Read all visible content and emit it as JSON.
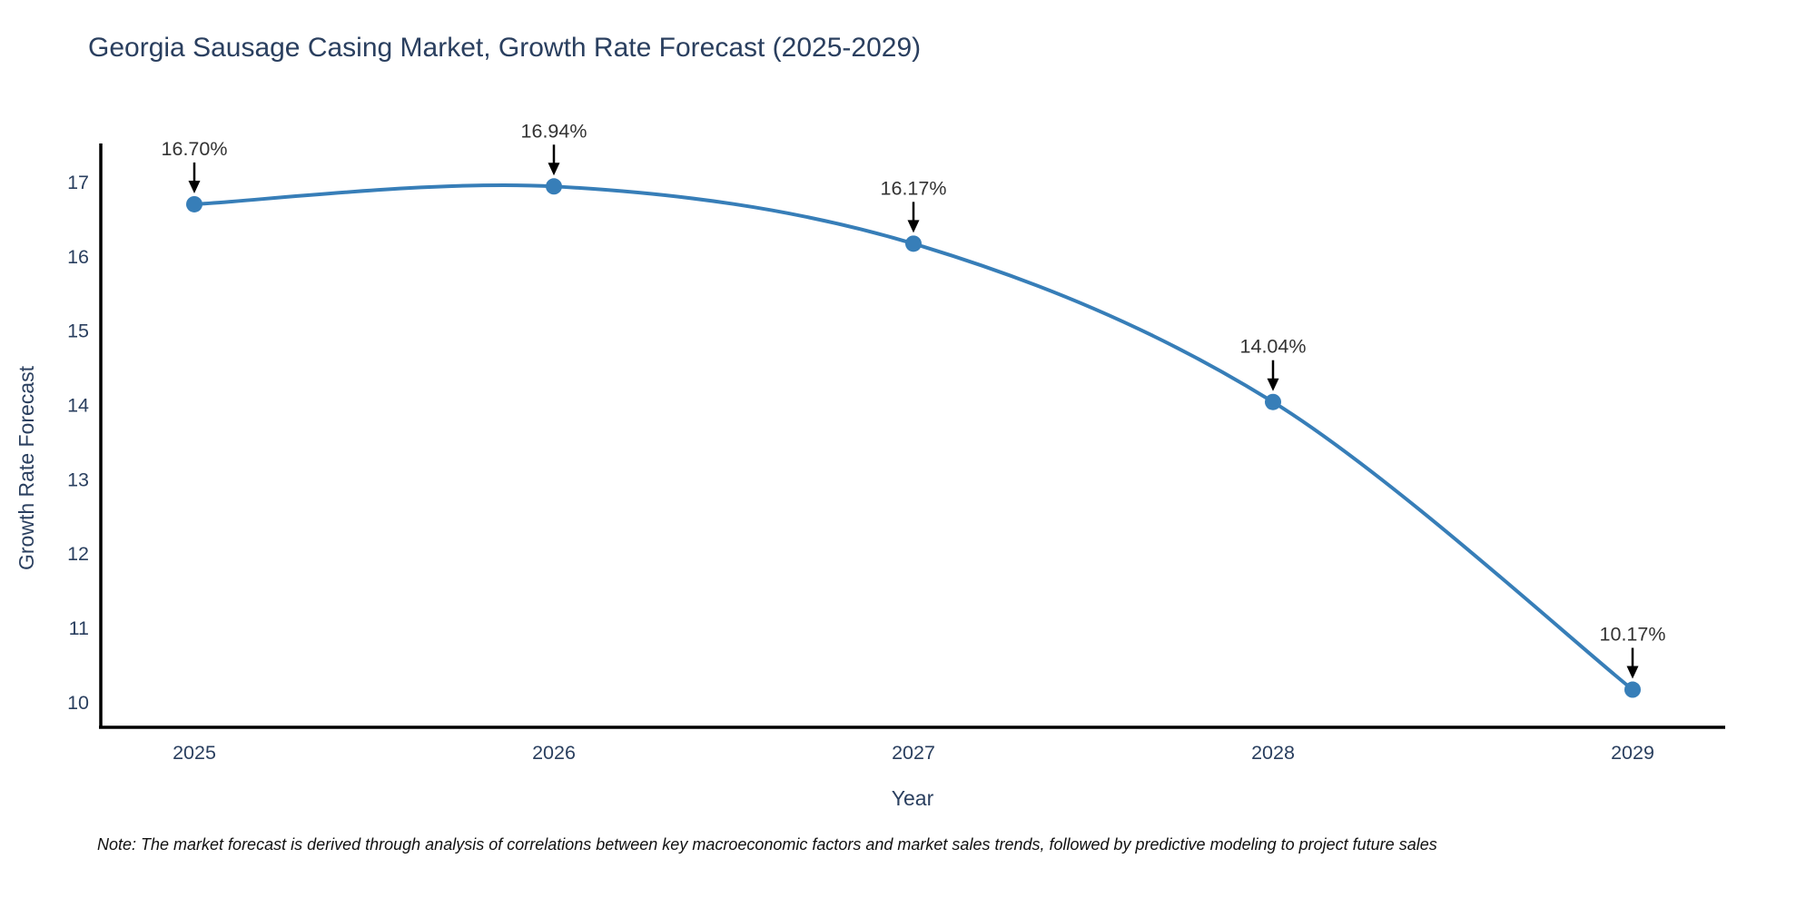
{
  "title": "Georgia Sausage Casing Market, Growth Rate Forecast (2025-2029)",
  "note": "Note: The market forecast is derived through analysis of correlations between key macroeconomic factors and market sales trends, followed by predictive modeling to project future sales",
  "chart_data": {
    "type": "line",
    "title": "Georgia Sausage Casing Market, Growth Rate Forecast (2025-2029)",
    "xlabel": "Year",
    "ylabel": "Growth Rate Forecast",
    "categories": [
      "2025",
      "2026",
      "2027",
      "2028",
      "2029"
    ],
    "values": [
      16.7,
      16.94,
      16.17,
      14.04,
      10.17
    ],
    "point_labels": [
      "16.70%",
      "16.94%",
      "16.17%",
      "14.04%",
      "10.17%"
    ],
    "series_name": "Growth Rate Forecast",
    "y_ticks": [
      17,
      16,
      15,
      14,
      13,
      12,
      11,
      10
    ],
    "ylim": [
      9.67,
      17.5
    ],
    "grid": false,
    "legend_position": "none",
    "line_shape": "spline",
    "annotations_have_arrows": true
  },
  "colors": {
    "line": "#377eb8",
    "marker": "#377eb8",
    "axis": "#000000",
    "arrow": "#000000",
    "title_text": "#2a3f5f",
    "tick_text": "#2a3f5f",
    "annotation_text": "#333333",
    "note_text": "#111111",
    "background": "#ffffff"
  }
}
